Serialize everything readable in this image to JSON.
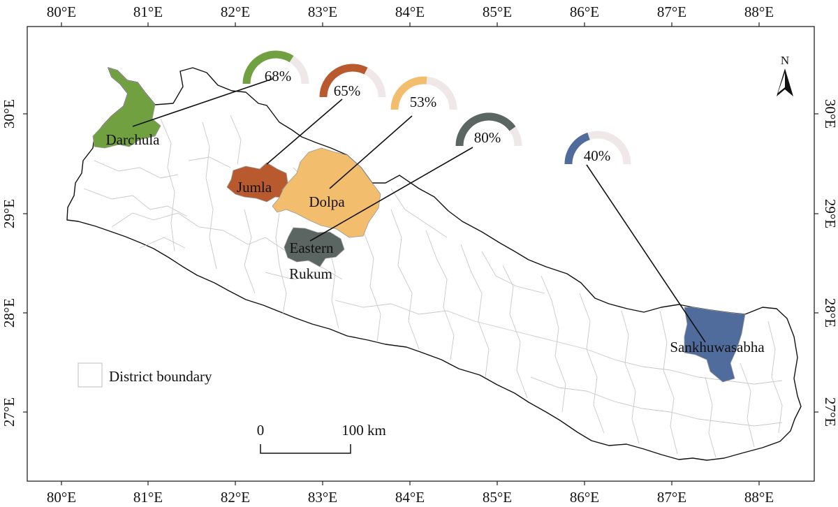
{
  "map": {
    "longitude_labels": [
      "80°E",
      "81°E",
      "82°E",
      "83°E",
      "84°E",
      "85°E",
      "86°E",
      "87°E",
      "88°E"
    ],
    "latitude_labels": [
      "30°E",
      "29°E",
      "28°E",
      "27°E"
    ],
    "north_label": "N",
    "legend": {
      "label": "District boundary"
    },
    "scale_bar": {
      "start_label": "0",
      "end_label": "100 km"
    },
    "districts": [
      {
        "id": "darchula",
        "name_lines": [
          "Darchula"
        ],
        "percent": 68,
        "percent_label": "68%",
        "color": "#70a040"
      },
      {
        "id": "jumla",
        "name_lines": [
          "Jumla"
        ],
        "percent": 65,
        "percent_label": "65%",
        "color": "#b85a2e"
      },
      {
        "id": "dolpa",
        "name_lines": [
          "Dolpa"
        ],
        "percent": 53,
        "percent_label": "53%",
        "color": "#f3bd6e"
      },
      {
        "id": "eastern-rukum",
        "name_lines": [
          "Eastern",
          "Rukum"
        ],
        "percent": 80,
        "percent_label": "80%",
        "color": "#5b6561"
      },
      {
        "id": "sankhuwasabha",
        "name_lines": [
          "Sankhuwasabha"
        ],
        "percent": 40,
        "percent_label": "40%",
        "color": "#4f6c9c"
      }
    ],
    "gauge_track_color": "#f0e8e8"
  }
}
